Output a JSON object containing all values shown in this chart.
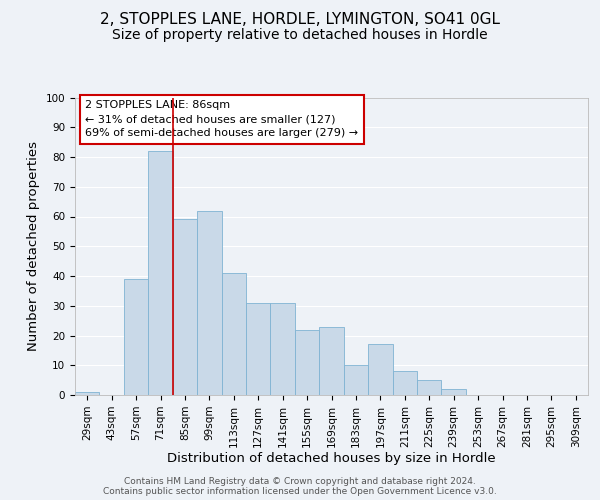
{
  "title": "2, STOPPLES LANE, HORDLE, LYMINGTON, SO41 0GL",
  "subtitle": "Size of property relative to detached houses in Hordle",
  "xlabel": "Distribution of detached houses by size in Hordle",
  "ylabel": "Number of detached properties",
  "footer_line1": "Contains HM Land Registry data © Crown copyright and database right 2024.",
  "footer_line2": "Contains public sector information licensed under the Open Government Licence v3.0.",
  "bin_labels": [
    "29sqm",
    "43sqm",
    "57sqm",
    "71sqm",
    "85sqm",
    "99sqm",
    "113sqm",
    "127sqm",
    "141sqm",
    "155sqm",
    "169sqm",
    "183sqm",
    "197sqm",
    "211sqm",
    "225sqm",
    "239sqm",
    "253sqm",
    "267sqm",
    "281sqm",
    "295sqm",
    "309sqm"
  ],
  "bin_values": [
    1,
    0,
    39,
    82,
    59,
    62,
    41,
    31,
    31,
    22,
    23,
    10,
    17,
    8,
    5,
    2,
    0,
    0,
    0,
    0,
    0
  ],
  "bar_color": "#c9d9e8",
  "bar_edge_color": "#7fb3d3",
  "vline_x": 3.5,
  "vline_color": "#cc0000",
  "annotation_title": "2 STOPPLES LANE: 86sqm",
  "annotation_line2": "← 31% of detached houses are smaller (127)",
  "annotation_line3": "69% of semi-detached houses are larger (279) →",
  "annotation_box_color": "#cc0000",
  "ylim": [
    0,
    100
  ],
  "yticks": [
    0,
    10,
    20,
    30,
    40,
    50,
    60,
    70,
    80,
    90,
    100
  ],
  "background_color": "#eef2f7",
  "plot_background": "#eef2f7",
  "grid_color": "#ffffff",
  "title_fontsize": 11,
  "subtitle_fontsize": 10,
  "axis_label_fontsize": 9.5,
  "tick_fontsize": 7.5,
  "annotation_fontsize": 8,
  "footer_fontsize": 6.5
}
